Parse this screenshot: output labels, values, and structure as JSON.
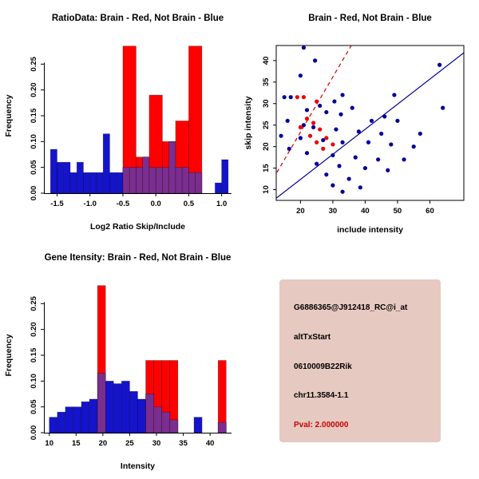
{
  "colors": {
    "red": "#FF0000",
    "hist_blue": "#1414CC",
    "overlap_purple": "#7A2E8F",
    "scatter_blue": "#000099",
    "scatter_red": "#EE0000",
    "red_line": "#CC0000",
    "info_bg": "#E6C9C0",
    "pval_red": "#CC0000"
  },
  "chart_data": [
    {
      "id": "hist_ratio",
      "type": "bar",
      "title": "RatioData: Brain - Red, Not Brain - Blue",
      "xlabel": "Log2 Ratio Skip/Include",
      "ylabel": "Frequency",
      "xlim": [
        -1.7,
        1.15
      ],
      "ylim": [
        0,
        0.3
      ],
      "xticks": [
        "-1.5",
        "-1.0",
        "-0.5",
        "0.0",
        "0.5",
        "1.0"
      ],
      "yticks": [
        "0.00",
        "0.05",
        "0.10",
        "0.15",
        "0.20",
        "0.25"
      ],
      "bars_format": "[x_left, width, height]",
      "series": [
        {
          "name": "Not Brain",
          "color_key": "hist_blue",
          "bars": [
            [
              -1.6,
              0.1,
              0.085
            ],
            [
              -1.5,
              0.1,
              0.06
            ],
            [
              -1.4,
              0.1,
              0.06
            ],
            [
              -1.3,
              0.1,
              0.04
            ],
            [
              -1.2,
              0.1,
              0.06
            ],
            [
              -1.1,
              0.1,
              0.04
            ],
            [
              -1.0,
              0.1,
              0.04
            ],
            [
              -0.9,
              0.1,
              0.04
            ],
            [
              -0.8,
              0.1,
              0.115
            ],
            [
              -0.7,
              0.1,
              0.04
            ],
            [
              -0.6,
              0.1,
              0.04
            ],
            [
              -0.5,
              0.1,
              0.05
            ],
            [
              -0.4,
              0.1,
              0.05
            ],
            [
              -0.3,
              0.1,
              0.05
            ],
            [
              -0.2,
              0.1,
              0.07
            ],
            [
              -0.1,
              0.1,
              0.05
            ],
            [
              0.0,
              0.1,
              0.05
            ],
            [
              0.1,
              0.1,
              0.05
            ],
            [
              0.2,
              0.1,
              0.1
            ],
            [
              0.3,
              0.1,
              0.05
            ],
            [
              0.4,
              0.1,
              0.05
            ],
            [
              0.5,
              0.1,
              0.04
            ],
            [
              0.6,
              0.1,
              0.04
            ],
            [
              0.9,
              0.1,
              0.02
            ],
            [
              1.0,
              0.1,
              0.065
            ]
          ]
        },
        {
          "name": "Brain",
          "color_key": "red",
          "bars": [
            [
              -0.5,
              0.2,
              0.285
            ],
            [
              -0.3,
              0.2,
              0.07
            ],
            [
              -0.1,
              0.2,
              0.19
            ],
            [
              0.1,
              0.2,
              0.1
            ],
            [
              0.3,
              0.2,
              0.14
            ],
            [
              0.5,
              0.2,
              0.285
            ]
          ]
        }
      ]
    },
    {
      "id": "scatter",
      "type": "scatter",
      "title": "Brain - Red, Not Brain - Blue",
      "xlabel": "include intensity",
      "ylabel": "skip intensity",
      "xlim": [
        12.5,
        70.5
      ],
      "ylim": [
        7.5,
        43.5
      ],
      "xticks": [
        "20",
        "30",
        "40",
        "50",
        "60"
      ],
      "yticks": [
        "10",
        "15",
        "20",
        "25",
        "30",
        "35",
        "40"
      ],
      "series": [
        {
          "name": "Not Brain",
          "color_key": "scatter_blue",
          "points": [
            [
              21,
              43
            ],
            [
              24.5,
              40
            ],
            [
              63,
              39
            ],
            [
              20,
              36.5
            ],
            [
              33,
              32
            ],
            [
              49,
              32
            ],
            [
              15,
              31.5
            ],
            [
              17,
              31.5
            ],
            [
              30.5,
              30.5
            ],
            [
              26,
              29.5
            ],
            [
              36,
              29
            ],
            [
              64,
              29
            ],
            [
              22,
              28.5
            ],
            [
              28,
              28
            ],
            [
              32.5,
              27.5
            ],
            [
              46,
              27
            ],
            [
              16,
              26
            ],
            [
              42,
              26
            ],
            [
              50,
              26
            ],
            [
              21,
              25
            ],
            [
              24,
              24.5
            ],
            [
              31,
              24
            ],
            [
              38,
              23.5
            ],
            [
              45,
              23
            ],
            [
              57,
              23
            ],
            [
              14,
              22.5
            ],
            [
              20,
              22
            ],
            [
              27,
              21.5
            ],
            [
              33,
              21
            ],
            [
              41,
              21
            ],
            [
              48,
              20.5
            ],
            [
              55,
              20
            ],
            [
              16.5,
              19.5
            ],
            [
              22,
              18.5
            ],
            [
              30,
              18
            ],
            [
              37,
              17.5
            ],
            [
              44,
              17
            ],
            [
              52,
              17
            ],
            [
              25,
              16
            ],
            [
              32,
              15.5
            ],
            [
              40,
              15
            ],
            [
              47,
              14.5
            ],
            [
              28,
              13.5
            ],
            [
              35,
              12.5
            ],
            [
              30,
              11
            ],
            [
              38.5,
              10.5
            ],
            [
              33,
              9.5
            ]
          ]
        },
        {
          "name": "Brain",
          "color_key": "scatter_red",
          "points": [
            [
              19,
              31.5
            ],
            [
              21,
              31.5
            ],
            [
              25,
              30.5
            ],
            [
              22,
              26.5
            ],
            [
              24,
              25.5
            ],
            [
              20,
              24.5
            ],
            [
              26,
              24
            ],
            [
              23,
              22.5
            ],
            [
              28,
              22
            ],
            [
              25,
              21
            ],
            [
              30,
              20.5
            ],
            [
              27,
              19.5
            ]
          ]
        }
      ],
      "lines": [
        {
          "name": "not-brain-fit",
          "color_key": "scatter_blue",
          "dashed": false,
          "from": [
            12.5,
            8.0
          ],
          "to": [
            70.5,
            41.8
          ]
        },
        {
          "name": "brain-fit",
          "color_key": "red_line",
          "dashed": true,
          "from": [
            12.7,
            14.0
          ],
          "to": [
            35.7,
            43.5
          ]
        }
      ]
    },
    {
      "id": "hist_gene",
      "type": "bar",
      "title": "Gene Itensity: Brain - Red, Not Brain - Blue",
      "xlabel": "Intensity",
      "ylabel": "Frequency",
      "xlim": [
        9,
        44
      ],
      "ylim": [
        0,
        0.3
      ],
      "xticks": [
        "10",
        "15",
        "20",
        "25",
        "30",
        "35",
        "40"
      ],
      "yticks": [
        "0.00",
        "0.05",
        "0.10",
        "0.15",
        "0.20",
        "0.25"
      ],
      "bars_format": "[x_left, width, height]",
      "series": [
        {
          "name": "Not Brain",
          "color_key": "hist_blue",
          "bars": [
            [
              10,
              1.5,
              0.03
            ],
            [
              11.5,
              1.5,
              0.04
            ],
            [
              13,
              1.5,
              0.05
            ],
            [
              14.5,
              1.5,
              0.05
            ],
            [
              16,
              1.5,
              0.06
            ],
            [
              17.5,
              1.5,
              0.065
            ],
            [
              19,
              1.5,
              0.115
            ],
            [
              20.5,
              1.5,
              0.1
            ],
            [
              22,
              1.5,
              0.095
            ],
            [
              23.5,
              1.5,
              0.1
            ],
            [
              25,
              1.5,
              0.08
            ],
            [
              26.5,
              1.5,
              0.065
            ],
            [
              28,
              1.5,
              0.075
            ],
            [
              29.5,
              1.5,
              0.05
            ],
            [
              31,
              1.5,
              0.04
            ],
            [
              32.5,
              1.5,
              0.025
            ],
            [
              37,
              1.5,
              0.03
            ],
            [
              41.5,
              1.5,
              0.02
            ]
          ]
        },
        {
          "name": "Brain",
          "color_key": "red",
          "bars": [
            [
              19,
              1.5,
              0.285
            ],
            [
              28,
              1.5,
              0.14
            ],
            [
              29.5,
              1.5,
              0.14
            ],
            [
              31,
              1.5,
              0.14
            ],
            [
              32.5,
              1.5,
              0.14
            ],
            [
              41.5,
              1.5,
              0.14
            ]
          ]
        }
      ]
    }
  ],
  "info_panel": {
    "probe_id": "G6886365@J912418_RC@i_at",
    "event_type": "altTxStart",
    "gene_symbol": "0610009B22Rik",
    "location": "chr11.3584-1.1",
    "pval": "Pval: 2.000000"
  }
}
